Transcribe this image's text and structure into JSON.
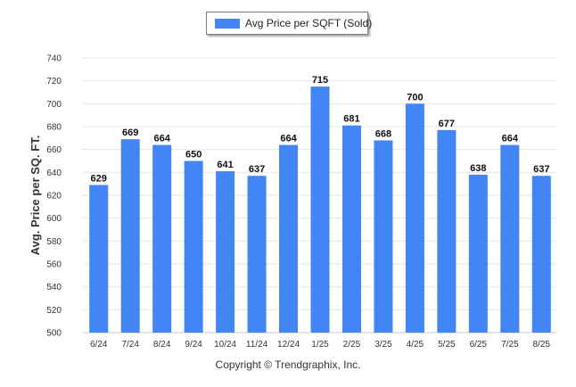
{
  "chart_data": {
    "type": "bar",
    "categories": [
      "6/24",
      "7/24",
      "8/24",
      "9/24",
      "10/24",
      "11/24",
      "12/24",
      "1/25",
      "2/25",
      "3/25",
      "4/25",
      "5/25",
      "6/25",
      "7/25",
      "8/25"
    ],
    "series": [
      {
        "name": "Avg Price per SQFT (Sold)",
        "values": [
          629,
          669,
          664,
          650,
          641,
          637,
          664,
          715,
          681,
          668,
          700,
          677,
          638,
          664,
          637
        ]
      }
    ],
    "ylabel": "Avg. Price per SQ. FT.",
    "xlabel": "",
    "ylim": [
      500,
      740
    ],
    "yticks": [
      500,
      520,
      540,
      560,
      580,
      600,
      620,
      640,
      660,
      680,
      700,
      720,
      740
    ],
    "grid": true,
    "legend_position": "top-center",
    "bar_color": "#4285f4"
  },
  "footer": {
    "copyright": "Copyright © Trendgraphix, Inc."
  }
}
